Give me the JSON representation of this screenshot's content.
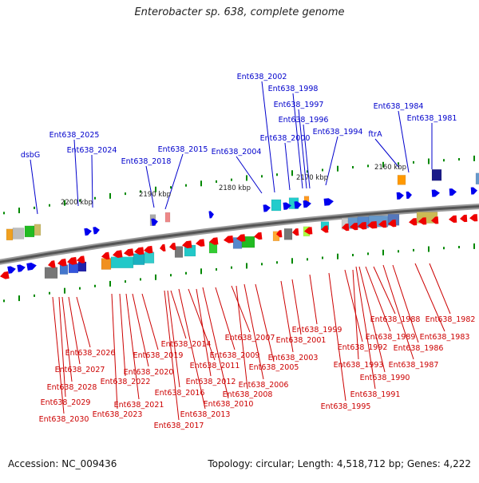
{
  "title": "Enterobacter sp. 638, complete genome",
  "footer": {
    "accession": "Accession: NC_009436",
    "topology": "Topology: circular; Length: 4,518,712 bp; Genes: 4,222"
  },
  "colors": {
    "forward_label": "#0000cc",
    "reverse_label": "#cc0000",
    "forward_gene": "#0000ee",
    "reverse_gene": "#ee0000",
    "backbone": "#888888",
    "tick": "#008800"
  },
  "scale_labels": [
    "2200 kbp",
    "2190 kbp",
    "2180 kbp",
    "2170 kbp",
    "2160 kbp"
  ],
  "forward_labels": [
    "dsbG",
    "Ent638_2025",
    "Ent638_2024",
    "Ent638_2018",
    "Ent638_2015",
    "Ent638_2004",
    "Ent638_2002",
    "Ent638_1998",
    "Ent638_1997",
    "Ent638_1996",
    "Ent638_2000",
    "Ent638_1994",
    "ftrA",
    "Ent638_1984",
    "Ent638_1981"
  ],
  "reverse_labels": [
    "Ent638_2026",
    "Ent638_2027",
    "Ent638_2028",
    "Ent638_2029",
    "Ent638_2030",
    "Ent638_2019",
    "Ent638_2020",
    "Ent638_2022",
    "Ent638_2021",
    "Ent638_2023",
    "Ent638_2014",
    "Ent638_2016",
    "Ent638_2017",
    "Ent638_2011",
    "Ent638_2012",
    "Ent638_2013",
    "Ent638_2009",
    "Ent638_2010",
    "Ent638_2007",
    "Ent638_2008",
    "Ent638_2006",
    "Ent638_2005",
    "Ent638_2003",
    "Ent638_2001",
    "Ent638_1999",
    "Ent638_1992",
    "Ent638_1993",
    "Ent638_1995",
    "Ent638_1988",
    "Ent638_1989",
    "Ent638_1990",
    "Ent638_1991",
    "Ent638_1986",
    "Ent638_1987",
    "Ent638_1982",
    "Ent638_1983"
  ]
}
